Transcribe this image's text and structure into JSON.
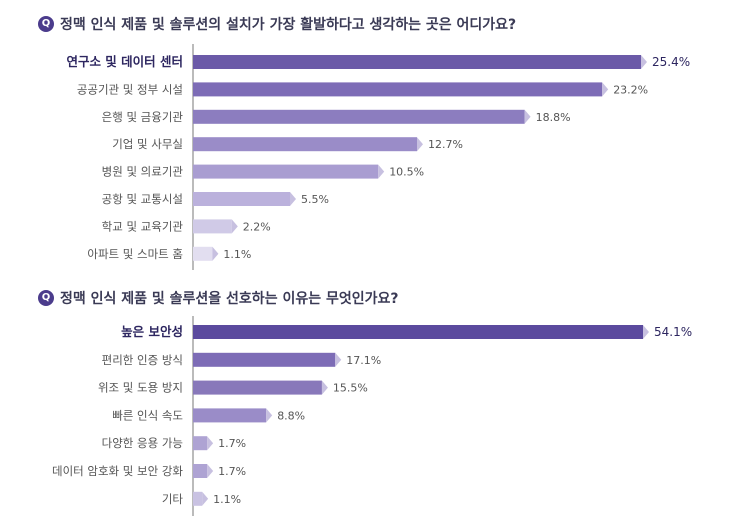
{
  "q_badge": "Q",
  "chart_data": [
    {
      "type": "bar",
      "orientation": "horizontal",
      "title": "정맥 인식 제품 및 솔루션의 설치가 가장 활발하다고 생각하는 곳은 어디가요?",
      "categories": [
        "연구소 및 데이터 센터",
        "공공기관 및 정부 시설",
        "은행 및 금융기관",
        "기업 및 사무실",
        "병원 및 의료기관",
        "공항 및 교통시설",
        "학교 및 교육기관",
        "아파트 및 스마트 홈"
      ],
      "values": [
        25.4,
        23.2,
        18.8,
        12.7,
        10.5,
        5.5,
        2.2,
        1.1
      ],
      "labels": [
        "25.4%",
        "23.2%",
        "18.8%",
        "12.7%",
        "10.5%",
        "5.5%",
        "2.2%",
        "1.1%"
      ],
      "xlim": [
        0,
        25.4
      ]
    },
    {
      "type": "bar",
      "orientation": "horizontal",
      "title": "정맥 인식 제품 및 솔루션을 선호하는 이유는 무엇인가요?",
      "categories": [
        "높은 보안성",
        "편리한 인증 방식",
        "위조 및 도용 방지",
        "빠른 인식 속도",
        "다양한 응용 가능",
        "데이터 암호화 및 보안 강화",
        "기타"
      ],
      "values": [
        54.1,
        17.1,
        15.5,
        8.8,
        1.7,
        1.7,
        1.1
      ],
      "labels": [
        "54.1%",
        "17.1%",
        "15.5%",
        "8.8%",
        "1.7%",
        "1.7%",
        "1.1%"
      ],
      "xlim": [
        0,
        54.1
      ]
    }
  ],
  "colors": {
    "first": [
      "#6b5aa8",
      "#7d6cb6",
      "#8c7dbf",
      "#9a8cc8",
      "#a99dd1",
      "#bbb1dc",
      "#d0cae7",
      "#e2def0"
    ],
    "second": [
      "#5b4a9e",
      "#7d6cb6",
      "#8878ba",
      "#9a8cc8",
      "#aea3d3",
      "#aea3d3",
      "#c9c2e2"
    ]
  }
}
